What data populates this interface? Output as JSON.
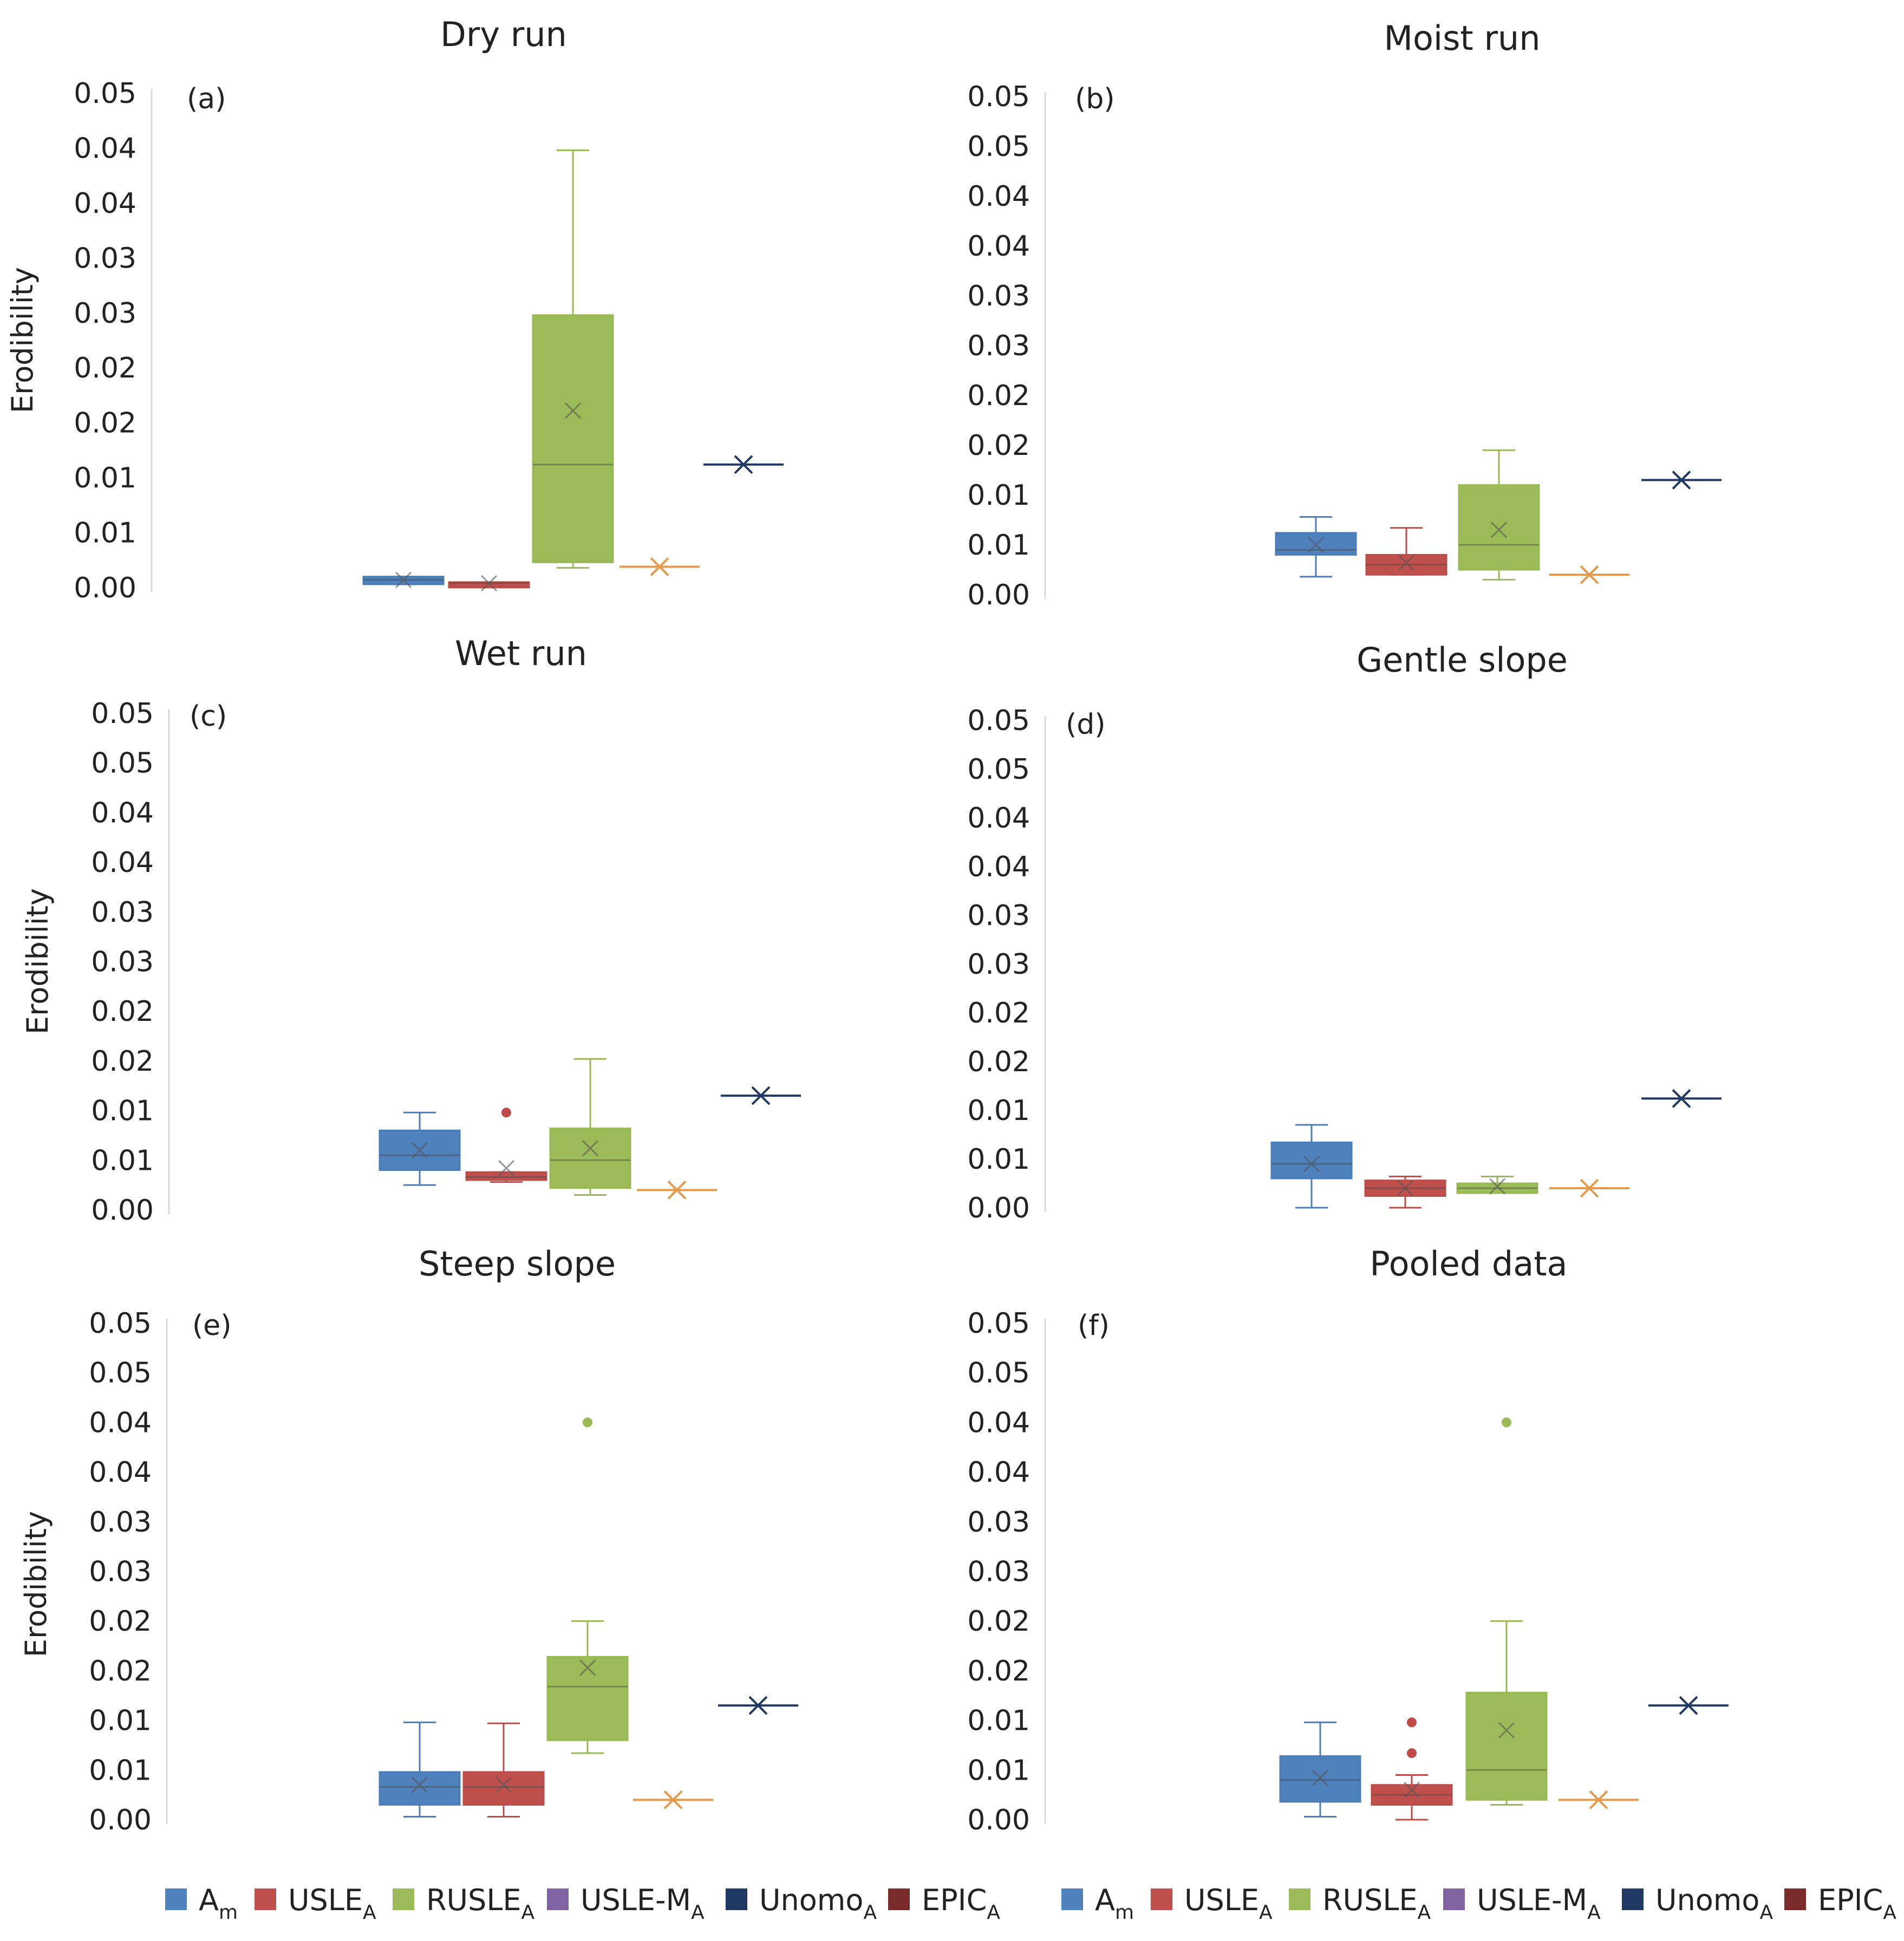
{
  "chart_data": [
    {
      "panel": "(a)",
      "title": "Dry run",
      "ylabel": "Erodibility",
      "type": "box",
      "ylim": [
        0,
        0.045
      ],
      "tick_labels": [
        "0.00",
        "0.01",
        "0.01",
        "0.02",
        "0.02",
        "0.03",
        "0.03",
        "0.04",
        "0.04",
        "0.05"
      ],
      "boxes": [
        {
          "series": "Am",
          "min": 0.0003,
          "q1": 0.0003,
          "median": 0.0007,
          "q3": 0.001,
          "max": 0.001,
          "mean": 0.0007,
          "outliers": []
        },
        {
          "series": "USLEA",
          "min": 0.0002,
          "q1": 0.0002,
          "median": 0.0004,
          "q3": 0.0005,
          "max": 0.0005,
          "mean": 0.0004,
          "outliers": []
        },
        {
          "series": "RUSLEA",
          "min": 0.0018,
          "q1": 0.0023,
          "median": 0.0112,
          "q3": 0.0248,
          "max": 0.0398,
          "mean": 0.0161,
          "outliers": []
        },
        {
          "series": "USLE-MA",
          "min": 0.0019,
          "q1": 0.0019,
          "median": 0.0019,
          "q3": 0.0019,
          "max": 0.0019,
          "mean": 0.0019,
          "outliers": []
        },
        {
          "series": "UnomoA",
          "min": 0.0112,
          "q1": 0.0112,
          "median": 0.0112,
          "q3": 0.0112,
          "max": 0.0112,
          "mean": 0.0112,
          "outliers": []
        }
      ]
    },
    {
      "panel": "(b)",
      "title": "Moist run",
      "ylabel": "",
      "type": "box",
      "ylim": [
        0,
        0.05
      ],
      "tick_labels": [
        "0.00",
        "0.01",
        "0.01",
        "0.02",
        "0.02",
        "0.03",
        "0.03",
        "0.04",
        "0.04",
        "0.05",
        "0.05"
      ],
      "boxes": [
        {
          "series": "Am",
          "min": 0.0018,
          "q1": 0.004,
          "median": 0.0045,
          "q3": 0.0062,
          "max": 0.0078,
          "mean": 0.005,
          "outliers": []
        },
        {
          "series": "USLEA",
          "min": 0.002,
          "q1": 0.002,
          "median": 0.003,
          "q3": 0.004,
          "max": 0.0067,
          "mean": 0.0032,
          "outliers": []
        },
        {
          "series": "RUSLEA",
          "min": 0.0015,
          "q1": 0.0025,
          "median": 0.005,
          "q3": 0.011,
          "max": 0.0145,
          "mean": 0.0065,
          "outliers": []
        },
        {
          "series": "USLE-MA",
          "min": 0.002,
          "q1": 0.002,
          "median": 0.002,
          "q3": 0.002,
          "max": 0.002,
          "mean": 0.002,
          "outliers": []
        },
        {
          "series": "UnomoA",
          "min": 0.0115,
          "q1": 0.0115,
          "median": 0.0115,
          "q3": 0.0115,
          "max": 0.0115,
          "mean": 0.0115,
          "outliers": []
        }
      ]
    },
    {
      "panel": "(c)",
      "title": "Wet run",
      "ylabel": "Erodibility",
      "type": "box",
      "ylim": [
        0,
        0.05
      ],
      "tick_labels": [
        "0.00",
        "0.01",
        "0.01",
        "0.02",
        "0.02",
        "0.03",
        "0.03",
        "0.04",
        "0.04",
        "0.05",
        "0.05"
      ],
      "boxes": [
        {
          "series": "Am",
          "min": 0.0025,
          "q1": 0.004,
          "median": 0.0055,
          "q3": 0.008,
          "max": 0.0098,
          "mean": 0.006,
          "outliers": []
        },
        {
          "series": "USLEA",
          "min": 0.0028,
          "q1": 0.003,
          "median": 0.0033,
          "q3": 0.0038,
          "max": 0.0038,
          "mean": 0.0042,
          "outliers": [
            0.0098
          ]
        },
        {
          "series": "RUSLEA",
          "min": 0.0015,
          "q1": 0.0022,
          "median": 0.005,
          "q3": 0.0082,
          "max": 0.0152,
          "mean": 0.0062,
          "outliers": []
        },
        {
          "series": "USLE-MA",
          "min": 0.002,
          "q1": 0.002,
          "median": 0.002,
          "q3": 0.002,
          "max": 0.002,
          "mean": 0.002,
          "outliers": []
        },
        {
          "series": "UnomoA",
          "min": 0.0115,
          "q1": 0.0115,
          "median": 0.0115,
          "q3": 0.0115,
          "max": 0.0115,
          "mean": 0.0115,
          "outliers": []
        }
      ]
    },
    {
      "panel": "(d)",
      "title": "Gentle slope",
      "ylabel": "",
      "type": "box",
      "ylim": [
        0,
        0.05
      ],
      "tick_labels": [
        "0.00",
        "0.01",
        "0.01",
        "0.02",
        "0.02",
        "0.03",
        "0.03",
        "0.04",
        "0.04",
        "0.05",
        "0.05"
      ],
      "boxes": [
        {
          "series": "Am",
          "min": 0.0,
          "q1": 0.003,
          "median": 0.0045,
          "q3": 0.0067,
          "max": 0.0085,
          "mean": 0.0045,
          "outliers": []
        },
        {
          "series": "USLEA",
          "min": 0.0,
          "q1": 0.0012,
          "median": 0.002,
          "q3": 0.0028,
          "max": 0.0032,
          "mean": 0.002,
          "outliers": []
        },
        {
          "series": "RUSLEA",
          "min": 0.0015,
          "q1": 0.0015,
          "median": 0.002,
          "q3": 0.0025,
          "max": 0.0032,
          "mean": 0.0022,
          "outliers": []
        },
        {
          "series": "USLE-MA",
          "min": 0.002,
          "q1": 0.002,
          "median": 0.002,
          "q3": 0.002,
          "max": 0.002,
          "mean": 0.002,
          "outliers": []
        },
        {
          "series": "UnomoA",
          "min": 0.0112,
          "q1": 0.0112,
          "median": 0.0112,
          "q3": 0.0112,
          "max": 0.0112,
          "mean": 0.0112,
          "outliers": []
        }
      ]
    },
    {
      "panel": "(e)",
      "title": "Steep slope",
      "ylabel": "Erodibility",
      "type": "box",
      "ylim": [
        0,
        0.05
      ],
      "tick_labels": [
        "0.00",
        "0.01",
        "0.01",
        "0.02",
        "0.02",
        "0.03",
        "0.03",
        "0.04",
        "0.04",
        "0.05",
        "0.05"
      ],
      "boxes": [
        {
          "series": "Am",
          "min": 0.0003,
          "q1": 0.0015,
          "median": 0.0033,
          "q3": 0.0048,
          "max": 0.0098,
          "mean": 0.0035,
          "outliers": []
        },
        {
          "series": "USLEA",
          "min": 0.0003,
          "q1": 0.0015,
          "median": 0.0033,
          "q3": 0.0048,
          "max": 0.0097,
          "mean": 0.0035,
          "outliers": []
        },
        {
          "series": "RUSLEA",
          "min": 0.0067,
          "q1": 0.008,
          "median": 0.0134,
          "q3": 0.0164,
          "max": 0.02,
          "mean": 0.0153,
          "outliers": [
            0.04
          ]
        },
        {
          "series": "USLE-MA",
          "min": 0.002,
          "q1": 0.002,
          "median": 0.002,
          "q3": 0.002,
          "max": 0.002,
          "mean": 0.002,
          "outliers": []
        },
        {
          "series": "UnomoA",
          "min": 0.0115,
          "q1": 0.0115,
          "median": 0.0115,
          "q3": 0.0115,
          "max": 0.0115,
          "mean": 0.0115,
          "outliers": []
        }
      ]
    },
    {
      "panel": "(f)",
      "title": "Pooled data",
      "ylabel": "",
      "type": "box",
      "ylim": [
        0,
        0.05
      ],
      "tick_labels": [
        "0.00",
        "0.01",
        "0.01",
        "0.02",
        "0.02",
        "0.03",
        "0.03",
        "0.04",
        "0.04",
        "0.05",
        "0.05"
      ],
      "boxes": [
        {
          "series": "Am",
          "min": 0.0003,
          "q1": 0.0018,
          "median": 0.004,
          "q3": 0.0064,
          "max": 0.0098,
          "mean": 0.0042,
          "outliers": []
        },
        {
          "series": "USLEA",
          "min": 0.0,
          "q1": 0.0015,
          "median": 0.0025,
          "q3": 0.0035,
          "max": 0.0045,
          "mean": 0.003,
          "outliers": [
            0.0067,
            0.0098
          ]
        },
        {
          "series": "RUSLEA",
          "min": 0.0015,
          "q1": 0.002,
          "median": 0.005,
          "q3": 0.0128,
          "max": 0.02,
          "mean": 0.009,
          "outliers": [
            0.04
          ]
        },
        {
          "series": "USLE-MA",
          "min": 0.002,
          "q1": 0.002,
          "median": 0.002,
          "q3": 0.002,
          "max": 0.002,
          "mean": 0.002,
          "outliers": []
        },
        {
          "series": "UnomoA",
          "min": 0.0115,
          "q1": 0.0115,
          "median": 0.0115,
          "q3": 0.0115,
          "max": 0.0115,
          "mean": 0.0115,
          "outliers": []
        }
      ]
    }
  ],
  "series_colors": {
    "Am": "#4a7ebb",
    "USLEA": "#be4b48",
    "RUSLEA": "#98b954",
    "USLE-MA": "#e59a4d",
    "UnomoA": "#1f3864",
    "EPICA": "#7b2a2a"
  },
  "box_fill": {
    "Am": "#4f81bd",
    "USLEA": "#c0504d",
    "RUSLEA": "#9bbb59"
  },
  "legend": [
    {
      "base": "A",
      "sub": "m",
      "color": "#4f81bd"
    },
    {
      "base": "USLE",
      "sub": "A",
      "color": "#c0504d"
    },
    {
      "base": "RUSLE",
      "sub": "A",
      "color": "#9bbb59"
    },
    {
      "base": "USLE-M",
      "sub": "A",
      "color": "#8064a2"
    },
    {
      "base": "Unomo",
      "sub": "A",
      "color": "#1f3864"
    },
    {
      "base": "EPIC",
      "sub": "A",
      "color": "#7b2a2a"
    }
  ]
}
